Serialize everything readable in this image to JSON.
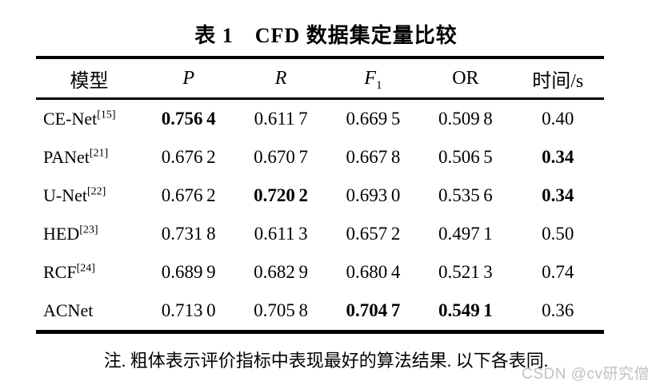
{
  "title": "表 1　CFD 数据集定量比较",
  "table": {
    "headers": [
      {
        "label": "模型"
      },
      {
        "label": "P",
        "italic": true
      },
      {
        "label": "R",
        "italic": true
      },
      {
        "label": "F",
        "sub": "1",
        "italic": true
      },
      {
        "label": "OR"
      },
      {
        "label": "时间/s"
      }
    ],
    "rows": [
      {
        "name": "CE-Net",
        "ref": "[15]",
        "cells": [
          {
            "v": "0.756 4",
            "bold": true
          },
          {
            "v": "0.611 7",
            "bold": false
          },
          {
            "v": "0.669 5",
            "bold": false
          },
          {
            "v": "0.509 8",
            "bold": false
          },
          {
            "v": "0.40",
            "bold": false
          }
        ]
      },
      {
        "name": "PANet",
        "ref": "[21]",
        "cells": [
          {
            "v": "0.676 2",
            "bold": false
          },
          {
            "v": "0.670 7",
            "bold": false
          },
          {
            "v": "0.667 8",
            "bold": false
          },
          {
            "v": "0.506 5",
            "bold": false
          },
          {
            "v": "0.34",
            "bold": true
          }
        ]
      },
      {
        "name": "U-Net",
        "ref": "[22]",
        "cells": [
          {
            "v": "0.676 2",
            "bold": false
          },
          {
            "v": "0.720 2",
            "bold": true
          },
          {
            "v": "0.693 0",
            "bold": false
          },
          {
            "v": "0.535 6",
            "bold": false
          },
          {
            "v": "0.34",
            "bold": true
          }
        ]
      },
      {
        "name": "HED",
        "ref": "[23]",
        "cells": [
          {
            "v": "0.731 8",
            "bold": false
          },
          {
            "v": "0.611 3",
            "bold": false
          },
          {
            "v": "0.657 2",
            "bold": false
          },
          {
            "v": "0.497 1",
            "bold": false
          },
          {
            "v": "0.50",
            "bold": false
          }
        ]
      },
      {
        "name": "RCF",
        "ref": "[24]",
        "cells": [
          {
            "v": "0.689 9",
            "bold": false
          },
          {
            "v": "0.682 9",
            "bold": false
          },
          {
            "v": "0.680 4",
            "bold": false
          },
          {
            "v": "0.521 3",
            "bold": false
          },
          {
            "v": "0.74",
            "bold": false
          }
        ]
      },
      {
        "name": "ACNet",
        "ref": "",
        "cells": [
          {
            "v": "0.713 0",
            "bold": false
          },
          {
            "v": "0.705 8",
            "bold": false
          },
          {
            "v": "0.704 7",
            "bold": true
          },
          {
            "v": "0.549 1",
            "bold": true
          },
          {
            "v": "0.36",
            "bold": false
          }
        ]
      }
    ]
  },
  "note": "注. 粗体表示评价指标中表现最好的算法结果. 以下各表同.",
  "watermark": "CSDN @cv研究僧"
}
